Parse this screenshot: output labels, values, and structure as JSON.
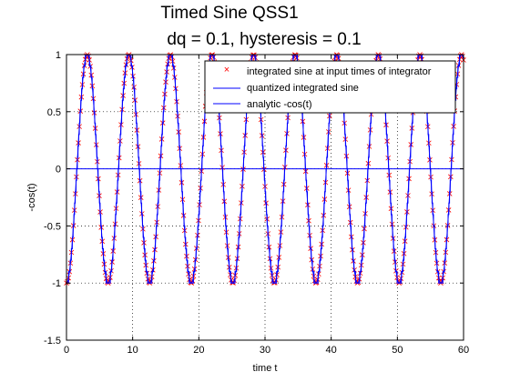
{
  "chart_data": {
    "type": "line",
    "title": "Timed Sine QSS1",
    "subtitle": "dq = 0.1, hysteresis = 0.1",
    "xlabel": "time t",
    "ylabel": "-cos(t)",
    "xlim": [
      0,
      60
    ],
    "ylim": [
      -1.5,
      1
    ],
    "xticks": [
      "0",
      "10",
      "20",
      "30",
      "40",
      "50",
      "60"
    ],
    "yticks": [
      "-1.5",
      "-1",
      "-0.5",
      "0",
      "0.5",
      "1"
    ],
    "grid": true,
    "legend_position": "top-right",
    "series": [
      {
        "name": "integrated sine at input times of integrator",
        "style": "markers",
        "marker": "x",
        "color": "#ff0000",
        "function": "-cos(t)",
        "x_start": 0,
        "x_end": 60,
        "x_step": 0.15
      },
      {
        "name": "quantized integrated sine",
        "style": "step",
        "color": "#0000ff",
        "function": "-cos(t)",
        "quantum": 0.1,
        "x_start": 0,
        "x_end": 60
      },
      {
        "name": "analytic -cos(t)",
        "style": "line",
        "color": "#0000ff",
        "function": "-cos(t)",
        "x_start": 0,
        "x_end": 60
      }
    ],
    "reference_lines": [
      {
        "y": 0,
        "color": "#0000ff"
      }
    ]
  }
}
